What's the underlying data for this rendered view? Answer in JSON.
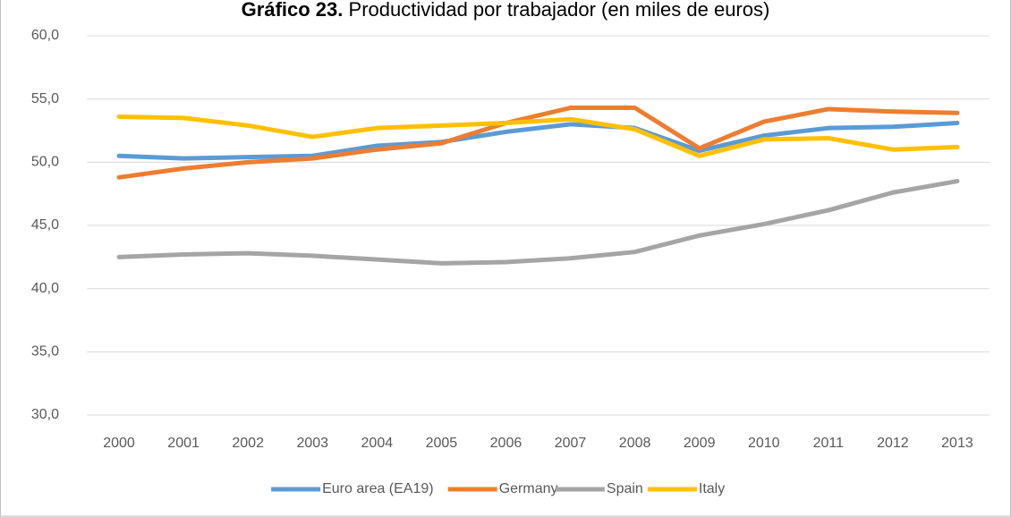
{
  "chart_data": {
    "type": "line",
    "title_label": "Gráfico 23.",
    "title": "Productividad por trabajador (en miles de euros)",
    "categories": [
      "2000",
      "2001",
      "2002",
      "2003",
      "2004",
      "2005",
      "2006",
      "2007",
      "2008",
      "2009",
      "2010",
      "2011",
      "2012",
      "2013"
    ],
    "series": [
      {
        "name": "Euro area (EA19)",
        "color": "#5b9bd5",
        "values": [
          50.5,
          50.3,
          50.4,
          50.5,
          51.3,
          51.6,
          52.4,
          53.0,
          52.7,
          50.9,
          52.1,
          52.7,
          52.8,
          53.1
        ]
      },
      {
        "name": "Germany",
        "color": "#ed7d31",
        "values": [
          48.8,
          49.5,
          50.0,
          50.3,
          51.0,
          51.5,
          53.1,
          54.3,
          54.3,
          51.1,
          53.2,
          54.2,
          54.0,
          53.9
        ]
      },
      {
        "name": "Spain",
        "color": "#a5a5a5",
        "values": [
          42.5,
          42.7,
          42.8,
          42.6,
          42.3,
          42.0,
          42.1,
          42.4,
          42.9,
          44.2,
          45.1,
          46.2,
          47.6,
          48.5
        ]
      },
      {
        "name": "Italy",
        "color": "#ffc000",
        "values": [
          53.6,
          53.5,
          52.9,
          52.0,
          52.7,
          52.9,
          53.1,
          53.4,
          52.6,
          50.5,
          51.8,
          51.9,
          51.0,
          51.2
        ]
      }
    ],
    "ylim": [
      30,
      60
    ],
    "yticks": [
      {
        "value": 30,
        "label": "30,0"
      },
      {
        "value": 35,
        "label": "35,0"
      },
      {
        "value": 40,
        "label": "40,0"
      },
      {
        "value": 45,
        "label": "45,0"
      },
      {
        "value": 50,
        "label": "50,0"
      },
      {
        "value": 55,
        "label": "55,0"
      },
      {
        "value": 60,
        "label": "60,0"
      }
    ],
    "grid": true,
    "legend": "bottom"
  }
}
